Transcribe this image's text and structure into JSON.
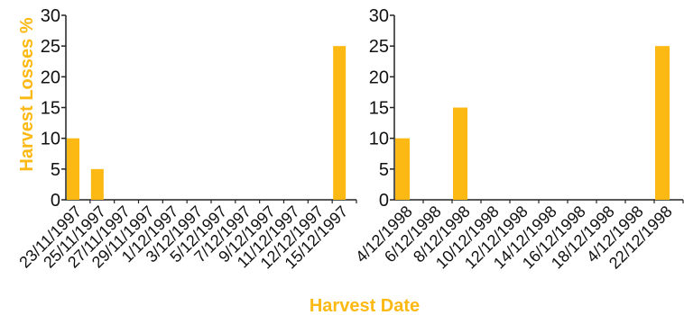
{
  "chart_data": {
    "type": "bar",
    "ylabel": "Harvest Losses %",
    "xlabel": "Harvest Date",
    "ylim": [
      0,
      30
    ],
    "yticks": [
      0,
      5,
      10,
      15,
      20,
      25,
      30
    ],
    "bar_color": "#FDB913",
    "axis_color": "#222222",
    "title_color": "#FDB913",
    "panels": [
      {
        "categories": [
          "23/11/1997",
          "25/11/1997",
          "27/11/1997",
          "29/11/1997",
          "1/12/1997",
          "3/12/1997",
          "5/12/1997",
          "7/12/1997",
          "9/12/1997",
          "11/12/1997",
          "12/12/1997",
          "15/12/1997"
        ],
        "values": [
          10,
          5,
          0,
          0,
          0,
          0,
          0,
          0,
          0,
          0,
          0,
          25
        ]
      },
      {
        "categories": [
          "4/12/1998",
          "6/12/1998",
          "8/12/1998",
          "10/12/1998",
          "12/12/1998",
          "14/12/1998",
          "16/12/1998",
          "18/12/1998",
          "4/12/1998",
          "22/12/1998"
        ],
        "values": [
          10,
          0,
          15,
          0,
          0,
          0,
          0,
          0,
          0,
          25
        ]
      }
    ]
  }
}
